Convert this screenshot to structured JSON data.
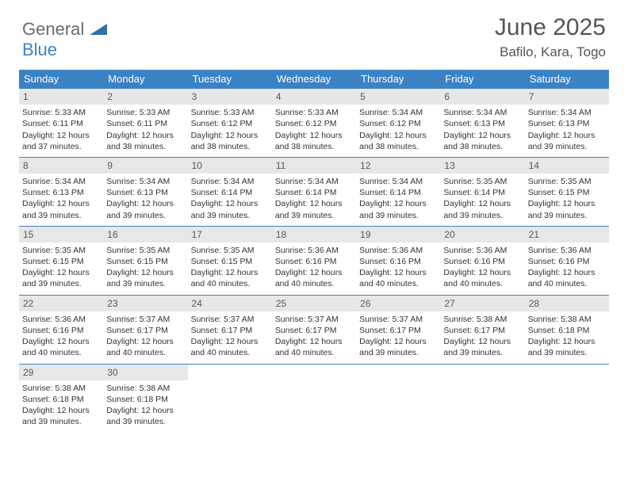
{
  "logo": {
    "line1": "General",
    "line2": "Blue"
  },
  "title": "June 2025",
  "location": "Bafilo, Kara, Togo",
  "dow": [
    "Sunday",
    "Monday",
    "Tuesday",
    "Wednesday",
    "Thursday",
    "Friday",
    "Saturday"
  ],
  "colors": {
    "header_bg": "#3b82c4",
    "daynum_bg": "#e7e7e7",
    "text": "#333333",
    "title_text": "#555555"
  },
  "weeks": [
    [
      {
        "n": "1",
        "sr": "5:33 AM",
        "ss": "6:11 PM",
        "dl": "12 hours and 37 minutes."
      },
      {
        "n": "2",
        "sr": "5:33 AM",
        "ss": "6:11 PM",
        "dl": "12 hours and 38 minutes."
      },
      {
        "n": "3",
        "sr": "5:33 AM",
        "ss": "6:12 PM",
        "dl": "12 hours and 38 minutes."
      },
      {
        "n": "4",
        "sr": "5:33 AM",
        "ss": "6:12 PM",
        "dl": "12 hours and 38 minutes."
      },
      {
        "n": "5",
        "sr": "5:34 AM",
        "ss": "6:12 PM",
        "dl": "12 hours and 38 minutes."
      },
      {
        "n": "6",
        "sr": "5:34 AM",
        "ss": "6:13 PM",
        "dl": "12 hours and 38 minutes."
      },
      {
        "n": "7",
        "sr": "5:34 AM",
        "ss": "6:13 PM",
        "dl": "12 hours and 39 minutes."
      }
    ],
    [
      {
        "n": "8",
        "sr": "5:34 AM",
        "ss": "6:13 PM",
        "dl": "12 hours and 39 minutes."
      },
      {
        "n": "9",
        "sr": "5:34 AM",
        "ss": "6:13 PM",
        "dl": "12 hours and 39 minutes."
      },
      {
        "n": "10",
        "sr": "5:34 AM",
        "ss": "6:14 PM",
        "dl": "12 hours and 39 minutes."
      },
      {
        "n": "11",
        "sr": "5:34 AM",
        "ss": "6:14 PM",
        "dl": "12 hours and 39 minutes."
      },
      {
        "n": "12",
        "sr": "5:34 AM",
        "ss": "6:14 PM",
        "dl": "12 hours and 39 minutes."
      },
      {
        "n": "13",
        "sr": "5:35 AM",
        "ss": "6:14 PM",
        "dl": "12 hours and 39 minutes."
      },
      {
        "n": "14",
        "sr": "5:35 AM",
        "ss": "6:15 PM",
        "dl": "12 hours and 39 minutes."
      }
    ],
    [
      {
        "n": "15",
        "sr": "5:35 AM",
        "ss": "6:15 PM",
        "dl": "12 hours and 39 minutes."
      },
      {
        "n": "16",
        "sr": "5:35 AM",
        "ss": "6:15 PM",
        "dl": "12 hours and 39 minutes."
      },
      {
        "n": "17",
        "sr": "5:35 AM",
        "ss": "6:15 PM",
        "dl": "12 hours and 40 minutes."
      },
      {
        "n": "18",
        "sr": "5:36 AM",
        "ss": "6:16 PM",
        "dl": "12 hours and 40 minutes."
      },
      {
        "n": "19",
        "sr": "5:36 AM",
        "ss": "6:16 PM",
        "dl": "12 hours and 40 minutes."
      },
      {
        "n": "20",
        "sr": "5:36 AM",
        "ss": "6:16 PM",
        "dl": "12 hours and 40 minutes."
      },
      {
        "n": "21",
        "sr": "5:36 AM",
        "ss": "6:16 PM",
        "dl": "12 hours and 40 minutes."
      }
    ],
    [
      {
        "n": "22",
        "sr": "5:36 AM",
        "ss": "6:16 PM",
        "dl": "12 hours and 40 minutes."
      },
      {
        "n": "23",
        "sr": "5:37 AM",
        "ss": "6:17 PM",
        "dl": "12 hours and 40 minutes."
      },
      {
        "n": "24",
        "sr": "5:37 AM",
        "ss": "6:17 PM",
        "dl": "12 hours and 40 minutes."
      },
      {
        "n": "25",
        "sr": "5:37 AM",
        "ss": "6:17 PM",
        "dl": "12 hours and 40 minutes."
      },
      {
        "n": "26",
        "sr": "5:37 AM",
        "ss": "6:17 PM",
        "dl": "12 hours and 39 minutes."
      },
      {
        "n": "27",
        "sr": "5:38 AM",
        "ss": "6:17 PM",
        "dl": "12 hours and 39 minutes."
      },
      {
        "n": "28",
        "sr": "5:38 AM",
        "ss": "6:18 PM",
        "dl": "12 hours and 39 minutes."
      }
    ],
    [
      {
        "n": "29",
        "sr": "5:38 AM",
        "ss": "6:18 PM",
        "dl": "12 hours and 39 minutes."
      },
      {
        "n": "30",
        "sr": "5:38 AM",
        "ss": "6:18 PM",
        "dl": "12 hours and 39 minutes."
      },
      null,
      null,
      null,
      null,
      null
    ]
  ],
  "labels": {
    "sunrise": "Sunrise: ",
    "sunset": "Sunset: ",
    "daylight": "Daylight: "
  }
}
